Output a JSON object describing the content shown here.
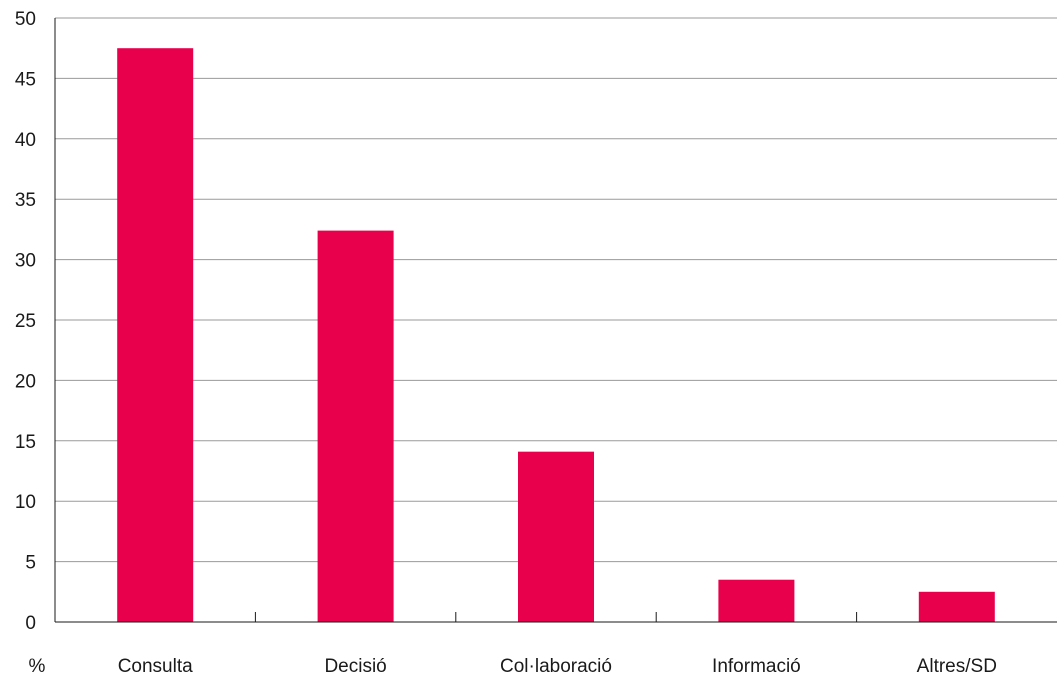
{
  "chart_data": {
    "type": "bar",
    "categories": [
      "Consulta",
      "Decisió",
      "Col·laboració",
      "Informació",
      "Altres/SD"
    ],
    "values": [
      47.5,
      32.4,
      14.1,
      3.5,
      2.5
    ],
    "ylabel": "%",
    "ylim": [
      0,
      50
    ],
    "yticks": [
      0,
      5,
      10,
      15,
      20,
      25,
      30,
      35,
      40,
      45,
      50
    ],
    "grid": true,
    "bar_color": "#e8004c",
    "grid_color": "#9a9a9a"
  }
}
